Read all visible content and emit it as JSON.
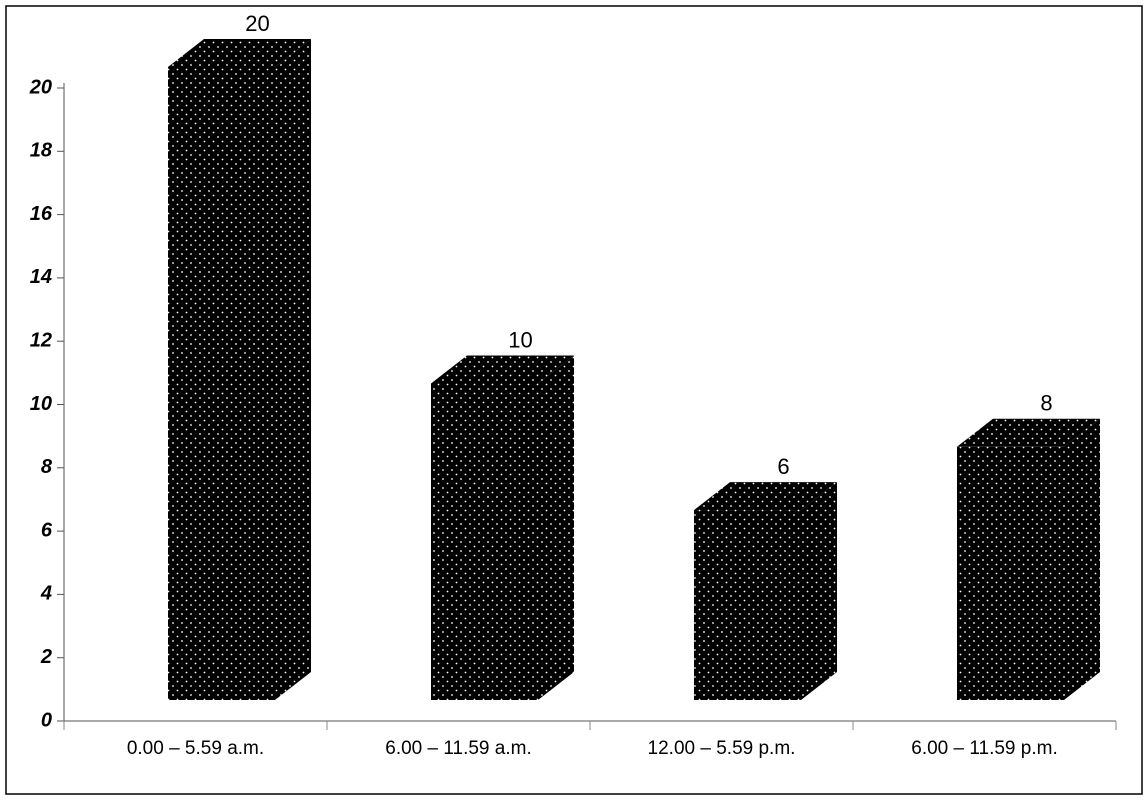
{
  "chart_data": {
    "type": "bar3d",
    "categories": [
      "0.00 – 5.59 a.m.",
      "6.00  – 11.59 a.m.",
      "12.00 – 5.59 p.m.",
      "6.00 – 11.59 p.m."
    ],
    "values": [
      20,
      10,
      6,
      8
    ],
    "color": "#000000",
    "ylim": [
      0,
      20
    ],
    "yticks": [
      0,
      2,
      4,
      6,
      8,
      10,
      12,
      14,
      16,
      18,
      20
    ]
  }
}
